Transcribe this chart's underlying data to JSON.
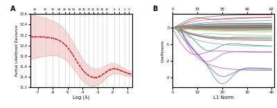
{
  "panel_A": {
    "title_label": "A",
    "xlabel": "Log (λ)",
    "ylabel": "Partial Likelihood Deviance",
    "top_ticks": [
      60,
      50,
      59,
      58,
      56,
      55,
      54,
      49,
      43,
      37,
      32,
      25,
      18,
      14,
      8,
      4,
      1,
      0
    ],
    "top_tick_positions": [
      -7.2,
      -6.5,
      -6.0,
      -5.6,
      -5.2,
      -4.9,
      -4.6,
      -4.2,
      -3.9,
      -3.6,
      -3.3,
      -3.0,
      -2.7,
      -2.4,
      -1.9,
      -1.55,
      -1.2,
      -0.9
    ],
    "xlim": [
      -7.5,
      -0.7
    ],
    "ylim": [
      11.2,
      12.6
    ],
    "yticks": [
      11.2,
      11.4,
      11.6,
      11.8,
      12.0,
      12.2,
      12.4,
      12.6
    ],
    "curve_color": "#cc0000",
    "ribbon_color": "#f0c0c0",
    "vline_color": "#c0c0c0",
    "background": "#ffffff"
  },
  "panel_B": {
    "title_label": "B",
    "xlabel": "L1 Norm",
    "ylabel": "Coefficients",
    "top_ticks": [
      0,
      33,
      55,
      60,
      62
    ],
    "top_tick_positions": [
      0,
      10,
      20,
      30,
      40
    ],
    "xlim": [
      0,
      41
    ],
    "ylim": [
      -3.6,
      0.82
    ],
    "yticks": [
      -3,
      -2,
      -1,
      0
    ],
    "background": "#ffffff"
  }
}
